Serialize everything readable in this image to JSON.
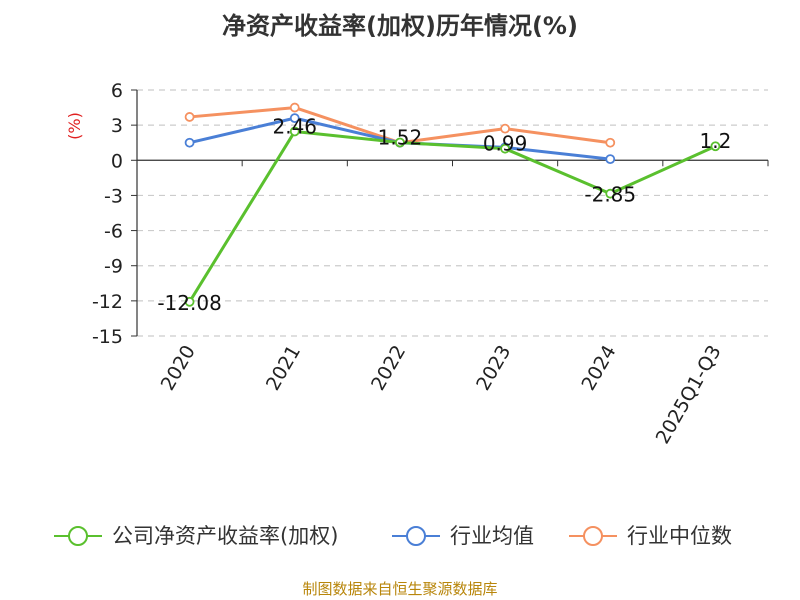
{
  "title": "净资产收益率(加权)历年情况(%)",
  "source": "制图数据来自恒生聚源数据库",
  "chart_data": {
    "type": "line",
    "title": "净资产收益率(加权)历年情况(%)",
    "ylabel": "(%)",
    "ylim": [
      -15,
      6
    ],
    "yticks": [
      6,
      3,
      0,
      -3,
      -6,
      -9,
      -12,
      -15
    ],
    "grid": true,
    "legend_position": "bottom",
    "categories": [
      "2020",
      "2021",
      "2022",
      "2023",
      "2024",
      "2025Q1-Q3"
    ],
    "series": [
      {
        "name": "公司净资产收益率(加权)",
        "color": "#5ac02e",
        "values": [
          -12.08,
          2.46,
          1.52,
          0.99,
          -2.85,
          1.2
        ],
        "labels": [
          "-12.08",
          "2.46",
          "1.52",
          "0.99",
          "-2.85",
          "1.2"
        ]
      },
      {
        "name": "行业均值",
        "color": "#4a7fd6",
        "values": [
          1.5,
          3.6,
          1.5,
          1.1,
          0.1,
          null
        ]
      },
      {
        "name": "行业中位数",
        "color": "#f59160",
        "values": [
          3.7,
          4.5,
          1.5,
          2.7,
          1.5,
          null
        ]
      }
    ]
  }
}
